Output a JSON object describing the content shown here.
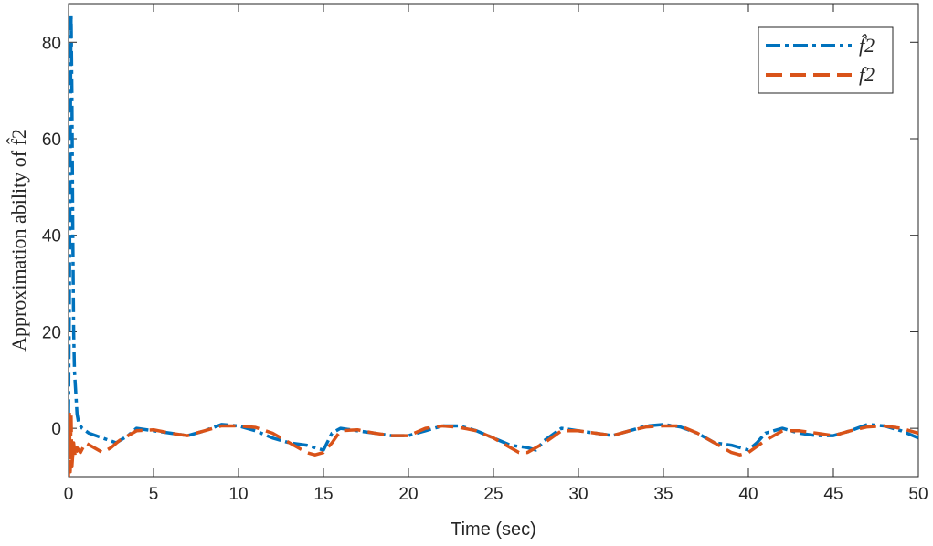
{
  "chart_data": {
    "type": "line",
    "title": "",
    "xlabel": "Time (sec)",
    "ylabel": "Approximation ability of f̂2",
    "xlim": [
      0,
      50
    ],
    "ylim": [
      -10,
      88
    ],
    "xticks": [
      "0",
      "5",
      "10",
      "15",
      "20",
      "25",
      "30",
      "35",
      "40",
      "45",
      "50"
    ],
    "yticks": [
      "0",
      "20",
      "40",
      "60",
      "80"
    ],
    "grid": false,
    "legend_position": "top-right",
    "series": [
      {
        "name": "f̂2",
        "legend_text": "f̂2",
        "color": "#0072BD",
        "style": "dash-dot",
        "x": [
          0,
          0.05,
          0.1,
          0.15,
          0.2,
          0.25,
          0.3,
          0.35,
          0.4,
          0.5,
          0.6,
          0.8,
          1.2,
          2,
          2.8,
          3.5,
          4,
          5,
          6,
          7,
          8,
          9,
          10,
          11,
          12,
          13,
          14,
          14.5,
          15,
          15.5,
          16,
          17,
          18,
          19,
          20,
          21,
          22,
          23,
          24,
          25,
          26,
          27,
          27.5,
          28,
          29,
          30,
          31,
          32,
          33,
          34,
          35,
          36,
          37,
          38,
          39,
          40,
          40.5,
          41,
          42,
          43,
          44,
          45,
          46,
          47,
          48,
          49,
          50
        ],
        "y": [
          3,
          25,
          60,
          86,
          70,
          40,
          20,
          12,
          9,
          3,
          1,
          0,
          -1,
          -2,
          -3,
          -1.5,
          0,
          -0.5,
          -1,
          -1.5,
          -0.5,
          0.8,
          0.5,
          -0.5,
          -2,
          -3,
          -3.5,
          -4,
          -4.5,
          -1,
          0,
          -0.5,
          -1,
          -1.5,
          -1.5,
          -0.5,
          0.5,
          0.5,
          -0.5,
          -2,
          -3.5,
          -4,
          -4.5,
          -2.5,
          0,
          -0.5,
          -1,
          -1.5,
          -0.5,
          0.5,
          0.8,
          0.3,
          -1,
          -3,
          -3.5,
          -4.5,
          -3,
          -1,
          0,
          -1,
          -1.5,
          -1.5,
          -0.5,
          0.8,
          0.5,
          -0.5,
          -2
        ]
      },
      {
        "name": "f2",
        "legend_text": "f2",
        "color": "#D95319",
        "style": "dashed",
        "x": [
          0,
          0.05,
          0.1,
          0.15,
          0.2,
          0.3,
          0.4,
          0.5,
          0.7,
          1,
          1.5,
          2,
          2.5,
          3,
          4,
          5,
          6,
          7,
          8,
          9,
          10,
          11,
          12,
          13,
          14,
          14.5,
          15,
          15.5,
          16,
          17,
          18,
          19,
          20,
          21,
          22,
          23,
          24,
          25,
          26,
          26.5,
          27,
          28,
          29,
          30,
          31,
          32,
          33,
          34,
          35,
          36,
          37,
          38,
          39,
          39.5,
          40,
          41,
          42,
          43,
          44,
          45,
          46,
          47,
          48,
          49,
          50
        ],
        "y": [
          -10,
          4,
          -9,
          3,
          -8,
          -3,
          -6,
          -4,
          -5,
          -3,
          -4,
          -5,
          -4,
          -2.5,
          -0.5,
          -0.3,
          -1,
          -1.5,
          -0.5,
          0.5,
          0.5,
          0.2,
          -1,
          -3,
          -5,
          -5.5,
          -5,
          -3,
          -0.5,
          -0.3,
          -1,
          -1.5,
          -1.5,
          0,
          0.5,
          0.2,
          -0.5,
          -2,
          -4,
          -5,
          -5,
          -3,
          -0.5,
          -0.5,
          -1,
          -1.5,
          -0.5,
          0.3,
          0.5,
          0.5,
          -1,
          -3,
          -5,
          -5.5,
          -5,
          -2.5,
          -0.5,
          -0.5,
          -1,
          -1.5,
          -0.5,
          0.3,
          0.5,
          0,
          -1
        ]
      }
    ]
  }
}
